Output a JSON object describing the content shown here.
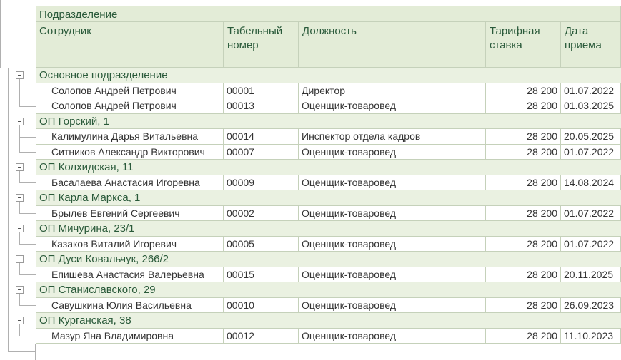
{
  "header": {
    "group": "Подразделение",
    "columns": [
      "Сотрудник",
      "Табельный номер",
      "Должность",
      "Тарифная ставка",
      "Дата приема"
    ]
  },
  "groups": [
    {
      "name": "Основное подразделение",
      "rows": [
        [
          "Солопов Андрей Петрович",
          "00001",
          "Директор",
          "28 200",
          "01.07.2022"
        ],
        [
          "Солопов Андрей Петрович",
          "00013",
          "Оценщик-товаровед",
          "28 200",
          "01.03.2025"
        ]
      ]
    },
    {
      "name": "ОП Горский, 1",
      "rows": [
        [
          "Калимулина Дарья Витальевна",
          "00014",
          "Инспектор отдела кадров",
          "28 200",
          "20.05.2025"
        ],
        [
          "Ситников Александр Викторович",
          "00007",
          "Оценщик-товаровед",
          "28 200",
          "01.07.2022"
        ]
      ]
    },
    {
      "name": "ОП Колхидская, 11",
      "rows": [
        [
          "Басалаева Анастасия Игоревна",
          "00009",
          "Оценщик-товаровед",
          "28 200",
          "14.08.2024"
        ]
      ]
    },
    {
      "name": "ОП Карла Маркса, 1",
      "rows": [
        [
          "Брылев Евгений Сергеевич",
          "00002",
          "Оценщик-товаровед",
          "28 200",
          "01.07.2022"
        ]
      ]
    },
    {
      "name": "ОП Мичурина, 23/1",
      "rows": [
        [
          "Казаков Виталий Игоревич",
          "00005",
          "Оценщик-товаровед",
          "28 200",
          "01.07.2022"
        ]
      ]
    },
    {
      "name": "ОП Дуси Ковальчук, 266/2",
      "rows": [
        [
          "Епишева Анастасия Валерьевна",
          "00015",
          "Оценщик-товаровед",
          "28 200",
          "20.11.2025"
        ]
      ]
    },
    {
      "name": "ОП Станиславского, 29",
      "rows": [
        [
          "Савушкина Юлия Васильевна",
          "00010",
          "Оценщик-товаровед",
          "28 200",
          "26.09.2023"
        ]
      ]
    },
    {
      "name": "ОП Курганская, 38",
      "rows": [
        [
          "Мазур Яна Владимировна",
          "00012",
          "Оценщик-товаровед",
          "28 200",
          "11.10.2023"
        ]
      ]
    }
  ]
}
